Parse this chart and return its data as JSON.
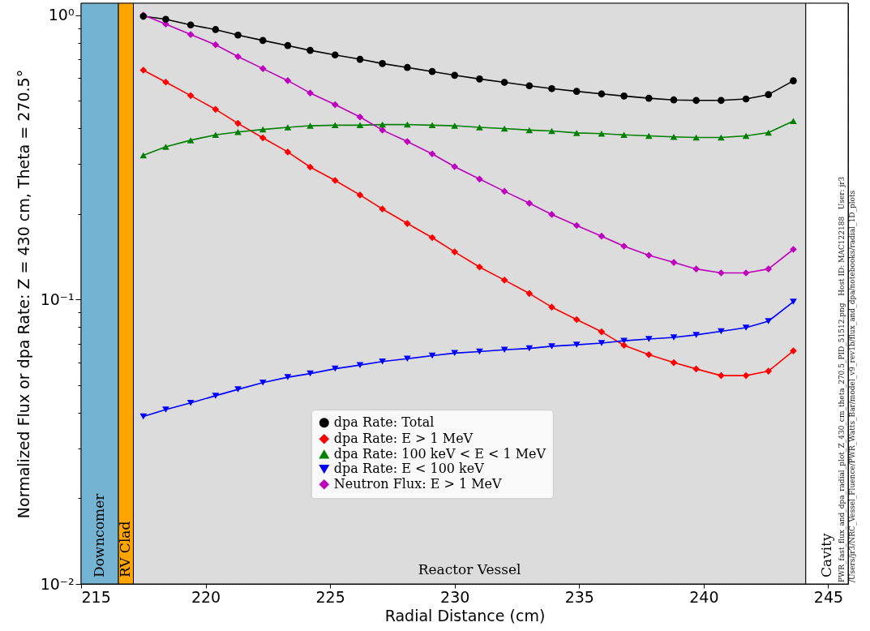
{
  "chart_data": {
    "type": "line",
    "xlabel": "Radial Distance (cm)",
    "ylabel": "Normalized Flux or dpa Rate:  Z = 430 cm, Theta = 270.5°",
    "log": "y",
    "grid": true,
    "legend": "bottom",
    "x": [
      217.5,
      218.4,
      219.4,
      220.4,
      221.3,
      222.3,
      223.3,
      224.2,
      225.2,
      226.2,
      227.1,
      228.1,
      229.1,
      230.0,
      231.0,
      232.0,
      233.0,
      233.9,
      234.9,
      235.9,
      236.8,
      237.8,
      238.8,
      239.7,
      240.7,
      241.7,
      242.6,
      243.6
    ],
    "series": [
      {
        "name": "dpa Rate: Total",
        "color": "#000000",
        "marker": "circle",
        "values": [
          0.99,
          0.966,
          0.923,
          0.889,
          0.85,
          0.814,
          0.781,
          0.751,
          0.724,
          0.699,
          0.675,
          0.654,
          0.633,
          0.614,
          0.596,
          0.58,
          0.564,
          0.551,
          0.539,
          0.528,
          0.519,
          0.51,
          0.503,
          0.501,
          0.501,
          0.507,
          0.525,
          0.587
        ]
      },
      {
        "name": "dpa Rate: E > 1 MeV",
        "color": "#ff0000",
        "marker": "diamond",
        "values": [
          0.64,
          0.581,
          0.521,
          0.466,
          0.416,
          0.37,
          0.33,
          0.292,
          0.262,
          0.233,
          0.208,
          0.185,
          0.165,
          0.147,
          0.13,
          0.117,
          0.105,
          0.094,
          0.085,
          0.077,
          0.069,
          0.064,
          0.06,
          0.057,
          0.054,
          0.054,
          0.056,
          0.066
        ]
      },
      {
        "name": "dpa Rate: 100 keV < E < 1 MeV",
        "color": "#008000",
        "marker": "triangle",
        "values": [
          0.321,
          0.344,
          0.363,
          0.379,
          0.388,
          0.396,
          0.403,
          0.408,
          0.41,
          0.41,
          0.412,
          0.412,
          0.41,
          0.408,
          0.403,
          0.399,
          0.394,
          0.391,
          0.385,
          0.383,
          0.379,
          0.376,
          0.373,
          0.371,
          0.371,
          0.376,
          0.386,
          0.424
        ]
      },
      {
        "name": "dpa Rate: E < 100 keV",
        "color": "#0000ff",
        "marker": "triangle-down",
        "values": [
          0.0388,
          0.041,
          0.0433,
          0.0459,
          0.0483,
          0.051,
          0.0533,
          0.0549,
          0.0571,
          0.0588,
          0.0605,
          0.0619,
          0.0635,
          0.0648,
          0.0656,
          0.0666,
          0.0673,
          0.0685,
          0.0693,
          0.0703,
          0.0716,
          0.0726,
          0.0736,
          0.0751,
          0.0773,
          0.0796,
          0.0839,
          0.0982
        ]
      },
      {
        "name": "Neutron Flux: E > 1 MeV",
        "color": "#bf00bf",
        "marker": "diamond",
        "values": [
          1.0,
          0.929,
          0.854,
          0.786,
          0.714,
          0.648,
          0.588,
          0.532,
          0.484,
          0.438,
          0.394,
          0.359,
          0.325,
          0.293,
          0.265,
          0.24,
          0.218,
          0.199,
          0.182,
          0.167,
          0.154,
          0.143,
          0.135,
          0.128,
          0.124,
          0.124,
          0.128,
          0.15
        ]
      }
    ],
    "xlim": [
      215,
      245.8
    ],
    "xticks": [
      215,
      220,
      225,
      230,
      235,
      240,
      245
    ],
    "ylim": [
      0.01,
      1.1
    ],
    "yticks": [
      {
        "value": 0.01,
        "label": "10⁻²"
      },
      {
        "value": 0.02,
        "label": null
      },
      {
        "value": 0.03,
        "label": null
      },
      {
        "value": 0.04,
        "label": null
      },
      {
        "value": 0.05,
        "label": null
      },
      {
        "value": 0.06,
        "label": null
      },
      {
        "value": 0.07,
        "label": null
      },
      {
        "value": 0.08,
        "label": null
      },
      {
        "value": 0.09,
        "label": null
      },
      {
        "value": 0.1,
        "label": "10⁻¹"
      },
      {
        "value": 0.2,
        "label": null
      },
      {
        "value": 0.3,
        "label": null
      },
      {
        "value": 0.4,
        "label": null
      },
      {
        "value": 0.5,
        "label": null
      },
      {
        "value": 0.6,
        "label": null
      },
      {
        "value": 0.7,
        "label": null
      },
      {
        "value": 0.8,
        "label": null
      },
      {
        "value": 0.9,
        "label": null
      },
      {
        "value": 1,
        "label": "10⁰"
      }
    ],
    "bands": [
      {
        "axis": "x",
        "from": 215,
        "to": 216.5,
        "label": "Downcomer",
        "color": "#75b3d3"
      },
      {
        "axis": "x",
        "from": 216.5,
        "to": 217.1,
        "label": "RV Clad",
        "color": "#ffa500"
      },
      {
        "axis": "x",
        "from": 217.1,
        "to": 244.1,
        "label": "Reactor Vessel",
        "color": "#dcdcdc"
      },
      {
        "axis": "x",
        "from": 244.1,
        "to": 245.8,
        "label": "Cavity",
        "color": "#ffffff"
      }
    ],
    "annotations": [
      "PWR_fast_flux_and_dpa_radial_plot_Z_430_cm_theta_270.5_PID_51512.png   Host ID: MAC122188   User: jr3",
      "/Users/jr3/NRC_Vessel_Fluence/PWR_Watts_Bar/model_v9_rev1b/flux_and_dpa/notebooks/radial_1D_plots"
    ]
  }
}
